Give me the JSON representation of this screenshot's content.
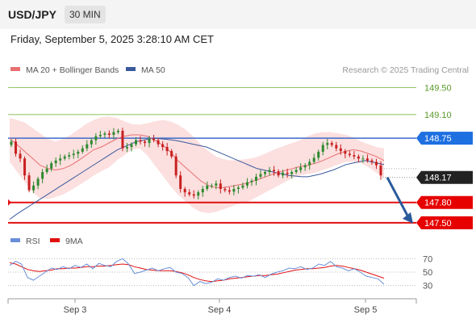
{
  "header": {
    "pair": "USD/JPY",
    "timeframe": "30 MIN"
  },
  "datetime": "Friday, September 5, 2025 3:28:10 AM CET",
  "legend": {
    "bollinger": "MA 20 + Bollinger Bands",
    "ma50": "MA 50",
    "copyright": "Research © 2025 Trading Central"
  },
  "colors": {
    "bull": "#2e8a2e",
    "bear": "#c82020",
    "support": "#e01010",
    "resistance": "#8bbf5a",
    "ma50": "#3a5a9c",
    "ma20": "#e87070",
    "band": "#fbd4d4",
    "rsi": "#6a8fd8",
    "rsi_ma": "#e01010",
    "arrow": "#2a5a9c"
  },
  "chart_data": [
    {
      "type": "candlestick",
      "x_ticks": [
        "Sep 3",
        "Sep 4",
        "Sep 5"
      ],
      "y_range": [
        147.45,
        149.6
      ],
      "levels": [
        {
          "label": "149.50",
          "value": 149.5,
          "kind": "resistance"
        },
        {
          "label": "149.10",
          "value": 149.1,
          "kind": "resistance"
        },
        {
          "label": "148.75",
          "value": 148.75,
          "kind": "pivot"
        },
        {
          "label": "147.80",
          "value": 147.8,
          "kind": "support"
        },
        {
          "label": "147.50",
          "value": 147.5,
          "kind": "support"
        }
      ],
      "last_price": {
        "label": "148.17",
        "value": 148.17
      },
      "projection": {
        "from": 148.17,
        "to": 147.5
      },
      "closes": [
        148.7,
        148.52,
        148.45,
        148.2,
        147.98,
        148.05,
        148.15,
        148.25,
        148.3,
        148.38,
        148.42,
        148.45,
        148.48,
        148.5,
        148.52,
        148.55,
        148.6,
        148.66,
        148.72,
        148.78,
        148.8,
        148.82,
        148.8,
        148.84,
        148.86,
        148.6,
        148.62,
        148.66,
        148.72,
        148.7,
        148.68,
        148.74,
        148.72,
        148.66,
        148.62,
        148.56,
        148.48,
        148.2,
        148.0,
        147.95,
        147.92,
        147.9,
        147.95,
        148.0,
        148.05,
        148.05,
        148.08,
        148.0,
        147.98,
        147.96,
        148.0,
        148.02,
        148.05,
        148.1,
        148.12,
        148.18,
        148.22,
        148.25,
        148.28,
        148.26,
        148.2,
        148.24,
        148.22,
        148.25,
        148.28,
        148.32,
        148.35,
        148.4,
        148.46,
        148.55,
        148.65,
        148.68,
        148.65,
        148.6,
        148.56,
        148.52,
        148.5,
        148.48,
        148.45,
        148.45,
        148.42,
        148.4,
        148.35,
        148.2
      ],
      "ma50": [
        147.55,
        147.62,
        147.68,
        147.74,
        147.8,
        147.86,
        147.92,
        147.98,
        148.04,
        148.1,
        148.16,
        148.22,
        148.28,
        148.34,
        148.4,
        148.46,
        148.52,
        148.58,
        148.62,
        148.66,
        148.7,
        148.72,
        148.74,
        148.75,
        148.74,
        148.73,
        148.72,
        148.7,
        148.68,
        148.66,
        148.64,
        148.62,
        148.58,
        148.54,
        148.5,
        148.46,
        148.42,
        148.38,
        148.34,
        148.3,
        148.28,
        148.26,
        148.24,
        148.22,
        148.2,
        148.19,
        148.18,
        148.18,
        148.2,
        148.22,
        148.25,
        148.28,
        148.32,
        148.36,
        148.38,
        148.4,
        148.42,
        148.4,
        148.38,
        148.36
      ],
      "ma20": [
        148.75,
        148.65,
        148.55,
        148.45,
        148.35,
        148.3,
        148.28,
        148.3,
        148.35,
        148.42,
        148.5,
        148.58,
        148.62,
        148.68,
        148.74,
        148.78,
        148.8,
        148.8,
        148.78,
        148.72,
        148.65,
        148.55,
        148.42,
        148.32,
        148.22,
        148.12,
        148.05,
        148.02,
        148.02,
        148.04,
        148.06,
        148.08,
        148.12,
        148.16,
        148.2,
        148.24,
        148.27,
        148.3,
        148.33,
        148.35,
        148.38,
        148.42,
        148.47,
        148.52,
        148.56,
        148.58,
        148.56,
        148.52,
        148.48,
        148.42
      ],
      "upper_band": [
        149.05,
        149.02,
        148.98,
        148.9,
        148.82,
        148.74,
        148.7,
        148.74,
        148.8,
        148.88,
        148.96,
        149.02,
        149.06,
        149.07,
        149.05,
        149.0,
        148.96,
        148.95,
        148.97,
        149.0,
        149.02,
        149.0,
        148.95,
        148.88,
        148.78,
        148.66,
        148.56,
        148.48,
        148.44,
        148.42,
        148.43,
        148.44,
        148.46,
        148.5,
        148.55,
        148.6,
        148.64,
        148.68,
        148.72,
        148.78,
        148.82,
        148.84,
        148.84,
        148.82,
        148.8,
        148.76,
        148.7,
        148.66,
        148.62,
        148.6
      ],
      "lower_band": [
        148.4,
        148.25,
        148.1,
        147.95,
        147.86,
        147.85,
        147.88,
        147.92,
        147.98,
        148.05,
        148.12,
        148.2,
        148.26,
        148.32,
        148.42,
        148.5,
        148.58,
        148.6,
        148.5,
        148.35,
        148.2,
        148.05,
        147.92,
        147.82,
        147.72,
        147.66,
        147.64,
        147.66,
        147.7,
        147.74,
        147.78,
        147.8,
        147.86,
        147.92,
        147.98,
        148.04,
        148.1,
        148.16,
        148.2,
        148.22,
        148.24,
        148.28,
        148.32,
        148.36,
        148.4,
        148.4,
        148.38,
        148.32,
        148.24,
        148.16
      ]
    },
    {
      "type": "line",
      "legend": [
        "RSI",
        "9MA"
      ],
      "y_range": [
        20,
        80
      ],
      "y_ticks": [
        70,
        50,
        30
      ],
      "rsi": [
        60,
        66,
        62,
        42,
        38,
        44,
        50,
        56,
        54,
        58,
        55,
        60,
        57,
        62,
        55,
        63,
        60,
        58,
        66,
        70,
        62,
        48,
        50,
        53,
        56,
        52,
        55,
        57,
        50,
        48,
        42,
        30,
        36,
        33,
        35,
        40,
        38,
        42,
        44,
        41,
        45,
        44,
        46,
        42,
        47,
        50,
        52,
        56,
        55,
        58,
        54,
        56,
        62,
        60,
        66,
        58,
        56,
        52,
        55,
        50,
        44,
        42,
        40,
        32
      ],
      "rsi_ma": [
        64,
        62,
        58,
        54,
        52,
        51,
        52,
        53,
        55,
        55,
        56,
        56,
        57,
        58,
        58,
        59,
        59,
        60,
        61,
        62,
        61,
        58,
        56,
        54,
        53,
        52,
        52,
        52,
        51,
        49,
        46,
        42,
        39,
        37,
        36,
        37,
        38,
        40,
        41,
        42,
        43,
        44,
        45,
        45,
        46,
        47,
        49,
        51,
        53,
        54,
        55,
        55,
        56,
        57,
        59,
        60,
        59,
        57,
        55,
        53,
        50,
        47,
        44,
        41
      ]
    }
  ]
}
